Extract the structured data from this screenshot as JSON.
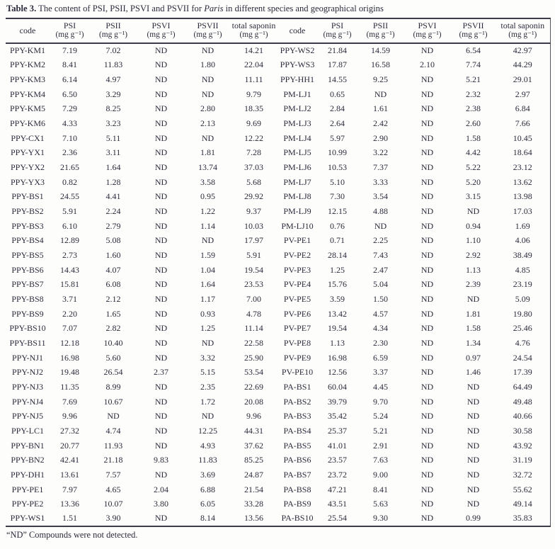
{
  "caption": {
    "label": "Table 3.",
    "before_italic": " The content of PSI, PSII, PSVI and PSVII for ",
    "italic": "Paris",
    "after_italic": " in different species and geographical origins"
  },
  "columns": [
    {
      "name": "code",
      "unit": ""
    },
    {
      "name": "PSI",
      "unit": "(mg g⁻¹)"
    },
    {
      "name": "PSII",
      "unit": "(mg g⁻¹)"
    },
    {
      "name": "PSVI",
      "unit": "(mg g⁻¹)"
    },
    {
      "name": "PSVII",
      "unit": "(mg g⁻¹)"
    },
    {
      "name": "total saponin",
      "unit": "(mg g⁻¹)"
    }
  ],
  "rows_left": [
    [
      "PPY-KM1",
      "7.19",
      "7.02",
      "ND",
      "ND",
      "14.21"
    ],
    [
      "PPY-KM2",
      "8.41",
      "11.83",
      "ND",
      "1.80",
      "22.04"
    ],
    [
      "PPY-KM3",
      "6.14",
      "4.97",
      "ND",
      "ND",
      "11.11"
    ],
    [
      "PPY-KM4",
      "6.50",
      "3.29",
      "ND",
      "ND",
      "9.79"
    ],
    [
      "PPY-KM5",
      "7.29",
      "8.25",
      "ND",
      "2.80",
      "18.35"
    ],
    [
      "PPY-KM6",
      "4.33",
      "3.23",
      "ND",
      "2.13",
      "9.69"
    ],
    [
      "PPY-CX1",
      "7.10",
      "5.11",
      "ND",
      "ND",
      "12.22"
    ],
    [
      "PPY-YX1",
      "2.36",
      "3.11",
      "ND",
      "1.81",
      "7.28"
    ],
    [
      "PPY-YX2",
      "21.65",
      "1.64",
      "ND",
      "13.74",
      "37.03"
    ],
    [
      "PPY-YX3",
      "0.82",
      "1.28",
      "ND",
      "3.58",
      "5.68"
    ],
    [
      "PPY-BS1",
      "24.55",
      "4.41",
      "ND",
      "0.95",
      "29.92"
    ],
    [
      "PPY-BS2",
      "5.91",
      "2.24",
      "ND",
      "1.22",
      "9.37"
    ],
    [
      "PPY-BS3",
      "6.10",
      "2.79",
      "ND",
      "1.14",
      "10.03"
    ],
    [
      "PPY-BS4",
      "12.89",
      "5.08",
      "ND",
      "ND",
      "17.97"
    ],
    [
      "PPY-BS5",
      "2.73",
      "1.60",
      "ND",
      "1.59",
      "5.91"
    ],
    [
      "PPY-BS6",
      "14.43",
      "4.07",
      "ND",
      "1.04",
      "19.54"
    ],
    [
      "PPY-BS7",
      "15.81",
      "6.08",
      "ND",
      "1.64",
      "23.53"
    ],
    [
      "PPY-BS8",
      "3.71",
      "2.12",
      "ND",
      "1.17",
      "7.00"
    ],
    [
      "PPY-BS9",
      "2.20",
      "1.65",
      "ND",
      "0.93",
      "4.78"
    ],
    [
      "PPY-BS10",
      "7.07",
      "2.82",
      "ND",
      "1.25",
      "11.14"
    ],
    [
      "PPY-BS11",
      "12.18",
      "10.40",
      "ND",
      "ND",
      "22.58"
    ],
    [
      "PPY-NJ1",
      "16.98",
      "5.60",
      "ND",
      "3.32",
      "25.90"
    ],
    [
      "PPY-NJ2",
      "19.48",
      "26.54",
      "2.37",
      "5.15",
      "53.54"
    ],
    [
      "PPY-NJ3",
      "11.35",
      "8.99",
      "ND",
      "2.35",
      "22.69"
    ],
    [
      "PPY-NJ4",
      "7.69",
      "10.67",
      "ND",
      "1.72",
      "20.08"
    ],
    [
      "PPY-NJ5",
      "9.96",
      "ND",
      "ND",
      "ND",
      "9.96"
    ],
    [
      "PPY-LC1",
      "27.32",
      "4.74",
      "ND",
      "12.25",
      "44.31"
    ],
    [
      "PPY-BN1",
      "20.77",
      "11.93",
      "ND",
      "4.93",
      "37.62"
    ],
    [
      "PPY-BN2",
      "42.41",
      "21.18",
      "9.83",
      "11.83",
      "85.25"
    ],
    [
      "PPY-DH1",
      "13.61",
      "7.57",
      "ND",
      "3.69",
      "24.87"
    ],
    [
      "PPY-PE1",
      "7.97",
      "4.65",
      "2.04",
      "6.88",
      "21.54"
    ],
    [
      "PPY-PE2",
      "13.36",
      "10.07",
      "3.80",
      "6.05",
      "33.28"
    ],
    [
      "PPY-WS1",
      "1.51",
      "3.90",
      "ND",
      "8.14",
      "13.56"
    ]
  ],
  "rows_right": [
    [
      "PPY-WS2",
      "21.84",
      "14.59",
      "ND",
      "6.54",
      "42.97"
    ],
    [
      "PPY-WS3",
      "17.87",
      "16.58",
      "2.10",
      "7.74",
      "44.29"
    ],
    [
      "PPY-HH1",
      "14.55",
      "9.25",
      "ND",
      "5.21",
      "29.01"
    ],
    [
      "PM-LJ1",
      "0.65",
      "ND",
      "ND",
      "2.32",
      "2.97"
    ],
    [
      "PM-LJ2",
      "2.84",
      "1.61",
      "ND",
      "2.38",
      "6.84"
    ],
    [
      "PM-LJ3",
      "2.64",
      "2.42",
      "ND",
      "2.60",
      "7.66"
    ],
    [
      "PM-LJ4",
      "5.97",
      "2.90",
      "ND",
      "1.58",
      "10.45"
    ],
    [
      "PM-LJ5",
      "10.99",
      "3.22",
      "ND",
      "4.42",
      "18.64"
    ],
    [
      "PM-LJ6",
      "10.53",
      "7.37",
      "ND",
      "5.22",
      "23.12"
    ],
    [
      "PM-LJ7",
      "5.10",
      "3.33",
      "ND",
      "5.20",
      "13.62"
    ],
    [
      "PM-LJ8",
      "7.30",
      "3.54",
      "ND",
      "3.15",
      "13.98"
    ],
    [
      "PM-LJ9",
      "12.15",
      "4.88",
      "ND",
      "ND",
      "17.03"
    ],
    [
      "PM-LJ10",
      "0.76",
      "ND",
      "ND",
      "0.94",
      "1.69"
    ],
    [
      "PV-PE1",
      "0.71",
      "2.25",
      "ND",
      "1.10",
      "4.06"
    ],
    [
      "PV-PE2",
      "28.14",
      "7.43",
      "ND",
      "2.92",
      "38.49"
    ],
    [
      "PV-PE3",
      "1.25",
      "2.47",
      "ND",
      "1.13",
      "4.85"
    ],
    [
      "PV-PE4",
      "15.76",
      "5.04",
      "ND",
      "2.39",
      "23.19"
    ],
    [
      "PV-PE5",
      "3.59",
      "1.50",
      "ND",
      "ND",
      "5.09"
    ],
    [
      "PV-PE6",
      "13.42",
      "4.57",
      "ND",
      "1.81",
      "19.80"
    ],
    [
      "PV-PE7",
      "19.54",
      "4.34",
      "ND",
      "1.58",
      "25.46"
    ],
    [
      "PV-PE8",
      "1.13",
      "2.30",
      "ND",
      "1.34",
      "4.76"
    ],
    [
      "PV-PE9",
      "16.98",
      "6.59",
      "ND",
      "0.97",
      "24.54"
    ],
    [
      "PV-PE10",
      "12.56",
      "3.37",
      "ND",
      "1.46",
      "17.39"
    ],
    [
      "PA-BS1",
      "60.04",
      "4.45",
      "ND",
      "ND",
      "64.49"
    ],
    [
      "PA-BS2",
      "39.79",
      "9.70",
      "ND",
      "ND",
      "49.48"
    ],
    [
      "PA-BS3",
      "35.42",
      "5.24",
      "ND",
      "ND",
      "40.66"
    ],
    [
      "PA-BS4",
      "25.37",
      "5.21",
      "ND",
      "ND",
      "30.58"
    ],
    [
      "PA-BS5",
      "41.01",
      "2.91",
      "ND",
      "ND",
      "43.92"
    ],
    [
      "PA-BS6",
      "23.57",
      "7.63",
      "ND",
      "ND",
      "31.19"
    ],
    [
      "PA-BS7",
      "23.72",
      "9.00",
      "ND",
      "ND",
      "32.72"
    ],
    [
      "PA-BS8",
      "47.21",
      "8.41",
      "ND",
      "ND",
      "55.62"
    ],
    [
      "PA-BS9",
      "43.51",
      "5.63",
      "ND",
      "ND",
      "49.14"
    ],
    [
      "PA-BS10",
      "25.54",
      "9.30",
      "ND",
      "0.99",
      "35.83"
    ]
  ],
  "footnote": "“ND” Compounds were not detected."
}
